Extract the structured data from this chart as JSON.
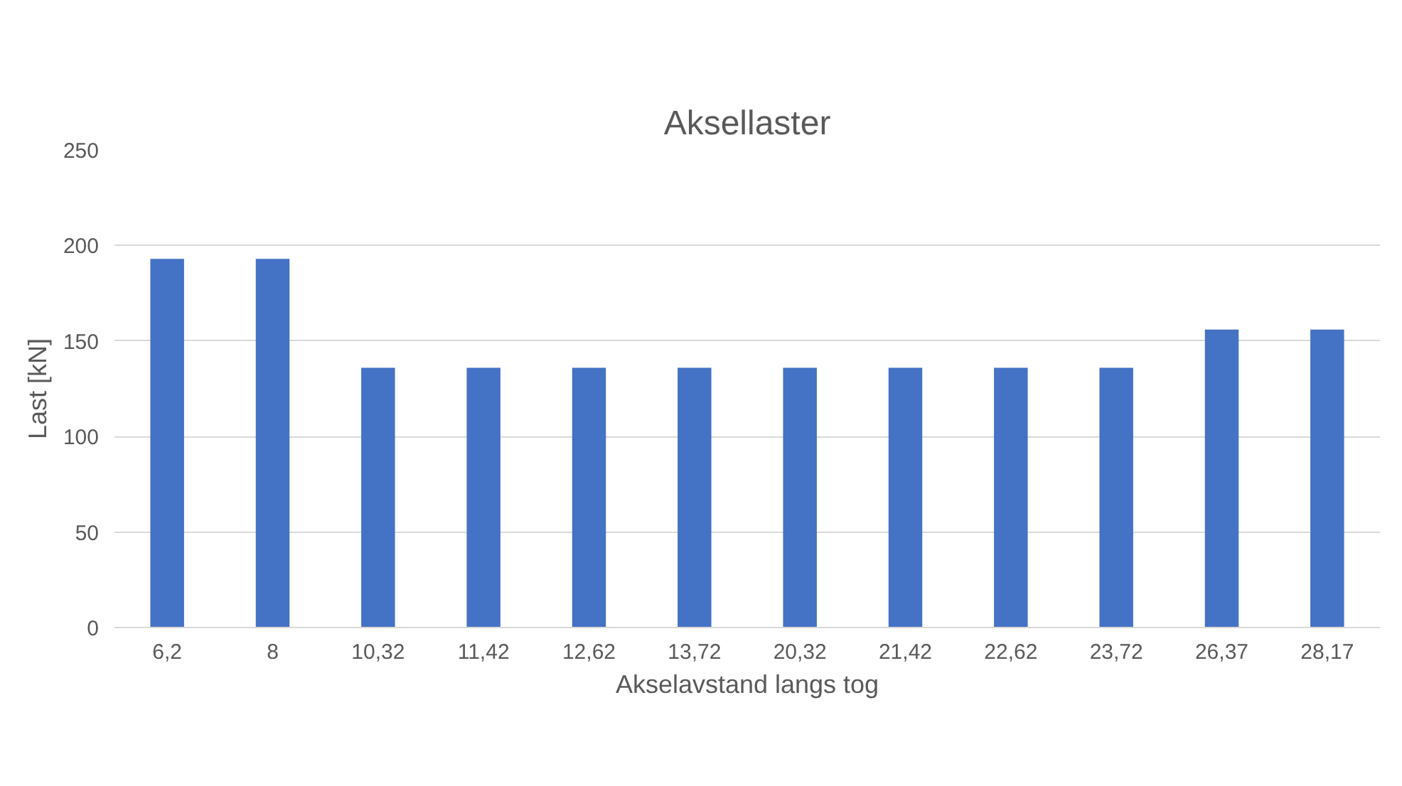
{
  "chart_data": {
    "type": "bar",
    "title": "Aksellaster",
    "xlabel": "Akselavstand langs tog",
    "ylabel": "Last [kN]",
    "categories": [
      "6,2",
      "8",
      "10,32",
      "11,42",
      "12,62",
      "13,72",
      "20,32",
      "21,42",
      "22,62",
      "23,72",
      "26,37",
      "28,17"
    ],
    "values": [
      193,
      193,
      136,
      136,
      136,
      136,
      136,
      136,
      136,
      136,
      156,
      156
    ],
    "color": "#4472c4",
    "ylim": [
      0,
      250
    ],
    "yticks": [
      0,
      50,
      100,
      150,
      200,
      250
    ],
    "grid": "y"
  }
}
